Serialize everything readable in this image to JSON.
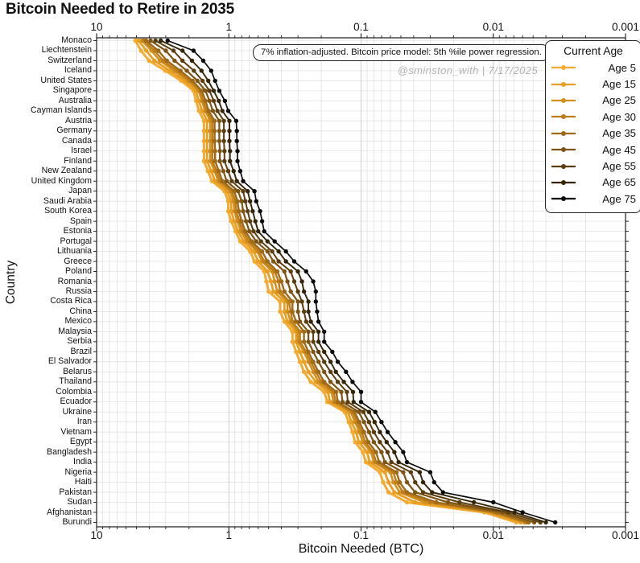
{
  "title": "Bitcoin Needed to Retire in 2035",
  "annotation": "7% inflation-adjusted. Bitcoin price model: 5th %ile power regression.",
  "watermark": "@sminston_with  |  7/17/2025",
  "chart_data": {
    "type": "line",
    "title": "Bitcoin Needed to Retire in 2035",
    "xlabel": "Bitcoin Needed (BTC)",
    "ylabel": "Country",
    "x_scale": "log, reversed (10 on left to 0.001 on right)",
    "xlim": [
      10,
      0.001
    ],
    "x_ticks": [
      "10",
      "1",
      "0.1",
      "0.01",
      "0.001"
    ],
    "x_tick_values": [
      10,
      1,
      0.1,
      0.01,
      0.001
    ],
    "grid": true,
    "legend_title": "Current Age",
    "legend_position": "upper right",
    "marker": "circle",
    "categories": [
      "Monaco",
      "Liechtenstein",
      "Switzerland",
      "Iceland",
      "United States",
      "Singapore",
      "Australia",
      "Cayman Islands",
      "Austria",
      "Germany",
      "Canada",
      "Israel",
      "Finland",
      "New Zealand",
      "United Kingdom",
      "Japan",
      "Saudi Arabia",
      "South Korea",
      "Spain",
      "Estonia",
      "Portugal",
      "Lithuania",
      "Greece",
      "Poland",
      "Romania",
      "Russia",
      "Costa Rica",
      "China",
      "Mexico",
      "Malaysia",
      "Serbia",
      "Brazil",
      "El Salvador",
      "Belarus",
      "Thailand",
      "Colombia",
      "Ecuador",
      "Ukraine",
      "Iran",
      "Vietnam",
      "Egypt",
      "Bangladesh",
      "India",
      "Nigeria",
      "Haiti",
      "Pakistan",
      "Sudan",
      "Afghanistan",
      "Burundi"
    ],
    "series": [
      {
        "name": "Age 5",
        "color": "#F2AC33",
        "values": [
          5.09,
          4.61,
          4.01,
          3.03,
          2.29,
          1.85,
          1.77,
          1.68,
          1.54,
          1.54,
          1.54,
          1.54,
          1.54,
          1.44,
          1.34,
          1.08,
          1.01,
          1.01,
          0.96,
          0.89,
          0.82,
          0.69,
          0.64,
          0.54,
          0.52,
          0.5,
          0.41,
          0.41,
          0.38,
          0.33,
          0.33,
          0.31,
          0.29,
          0.27,
          0.24,
          0.19,
          0.18,
          0.133,
          0.124,
          0.116,
          0.111,
          0.097,
          0.092,
          0.072,
          0.068,
          0.062,
          0.045,
          0.0117,
          0.0067
        ]
      },
      {
        "name": "Age 15",
        "color": "#E89F24",
        "values": [
          4.81,
          4.21,
          3.65,
          2.79,
          2.15,
          1.77,
          1.69,
          1.59,
          1.46,
          1.46,
          1.46,
          1.46,
          1.46,
          1.36,
          1.27,
          1.03,
          0.96,
          0.96,
          0.91,
          0.85,
          0.77,
          0.65,
          0.6,
          0.51,
          0.48,
          0.46,
          0.38,
          0.38,
          0.36,
          0.31,
          0.31,
          0.29,
          0.27,
          0.25,
          0.22,
          0.178,
          0.172,
          0.126,
          0.118,
          0.109,
          0.104,
          0.09,
          0.086,
          0.066,
          0.062,
          0.056,
          0.039,
          0.0109,
          0.0062
        ]
      },
      {
        "name": "Age 25",
        "color": "#D4901E",
        "values": [
          4.55,
          3.84,
          3.32,
          2.58,
          2.03,
          1.69,
          1.6,
          1.51,
          1.38,
          1.38,
          1.38,
          1.38,
          1.38,
          1.28,
          1.2,
          0.98,
          0.92,
          0.91,
          0.86,
          0.81,
          0.73,
          0.61,
          0.56,
          0.47,
          0.45,
          0.43,
          0.36,
          0.36,
          0.34,
          0.3,
          0.3,
          0.27,
          0.25,
          0.23,
          0.21,
          0.167,
          0.162,
          0.12,
          0.111,
          0.103,
          0.097,
          0.084,
          0.08,
          0.06,
          0.057,
          0.051,
          0.033,
          0.0102,
          0.0058
        ]
      },
      {
        "name": "Age 30",
        "color": "#BD7E1B",
        "values": [
          4.4,
          3.64,
          3.14,
          2.46,
          1.96,
          1.65,
          1.56,
          1.47,
          1.33,
          1.33,
          1.33,
          1.33,
          1.33,
          1.24,
          1.16,
          0.95,
          0.89,
          0.88,
          0.83,
          0.78,
          0.7,
          0.59,
          0.54,
          0.45,
          0.42,
          0.41,
          0.35,
          0.34,
          0.33,
          0.29,
          0.29,
          0.26,
          0.24,
          0.22,
          0.2,
          0.161,
          0.156,
          0.116,
          0.107,
          0.099,
          0.093,
          0.081,
          0.077,
          0.057,
          0.054,
          0.048,
          0.03,
          0.0098,
          0.0056
        ]
      },
      {
        "name": "Age 35",
        "color": "#9F6A18",
        "values": [
          4.23,
          3.41,
          2.94,
          2.32,
          1.88,
          1.6,
          1.5,
          1.42,
          1.28,
          1.28,
          1.28,
          1.27,
          1.27,
          1.19,
          1.12,
          0.91,
          0.86,
          0.84,
          0.8,
          0.75,
          0.67,
          0.56,
          0.51,
          0.43,
          0.4,
          0.38,
          0.33,
          0.33,
          0.31,
          0.27,
          0.27,
          0.25,
          0.23,
          0.21,
          0.19,
          0.154,
          0.15,
          0.112,
          0.103,
          0.095,
          0.088,
          0.077,
          0.073,
          0.054,
          0.051,
          0.045,
          0.027,
          0.0094,
          0.0054
        ]
      },
      {
        "name": "Age 45",
        "color": "#7E5414",
        "values": [
          3.91,
          3.0,
          2.57,
          2.08,
          1.73,
          1.5,
          1.4,
          1.32,
          1.18,
          1.18,
          1.18,
          1.17,
          1.17,
          1.1,
          1.04,
          0.85,
          0.8,
          0.78,
          0.74,
          0.7,
          0.62,
          0.51,
          0.46,
          0.38,
          0.36,
          0.34,
          0.3,
          0.3,
          0.29,
          0.25,
          0.25,
          0.23,
          0.21,
          0.19,
          0.17,
          0.141,
          0.138,
          0.104,
          0.095,
          0.087,
          0.08,
          0.07,
          0.066,
          0.048,
          0.045,
          0.039,
          0.022,
          0.0085,
          0.0049
        ]
      },
      {
        "name": "Age 55",
        "color": "#5B3D0F",
        "values": [
          3.59,
          2.62,
          2.24,
          1.84,
          1.58,
          1.4,
          1.3,
          1.22,
          1.09,
          1.09,
          1.09,
          1.08,
          1.08,
          1.01,
          0.95,
          0.78,
          0.75,
          0.72,
          0.69,
          0.65,
          0.57,
          0.47,
          0.42,
          0.34,
          0.32,
          0.3,
          0.28,
          0.27,
          0.26,
          0.23,
          0.23,
          0.21,
          0.19,
          0.17,
          0.15,
          0.128,
          0.126,
          0.096,
          0.087,
          0.08,
          0.072,
          0.063,
          0.059,
          0.042,
          0.039,
          0.034,
          0.018,
          0.0077,
          0.0044
        ]
      },
      {
        "name": "Age 65",
        "color": "#352509",
        "values": [
          3.27,
          2.24,
          1.9,
          1.61,
          1.43,
          1.3,
          1.19,
          1.12,
          0.99,
          0.99,
          0.99,
          0.98,
          0.98,
          0.92,
          0.87,
          0.72,
          0.69,
          0.66,
          0.63,
          0.6,
          0.51,
          0.42,
          0.37,
          0.3,
          0.28,
          0.27,
          0.25,
          0.25,
          0.24,
          0.21,
          0.21,
          0.19,
          0.17,
          0.155,
          0.135,
          0.115,
          0.114,
          0.087,
          0.079,
          0.072,
          0.064,
          0.056,
          0.052,
          0.036,
          0.034,
          0.029,
          0.014,
          0.0069,
          0.004
        ]
      },
      {
        "name": "Age 75",
        "color": "#0c0c0c",
        "values": [
          2.9,
          1.85,
          1.56,
          1.36,
          1.27,
          1.18,
          1.07,
          1.01,
          0.88,
          0.87,
          0.87,
          0.86,
          0.86,
          0.82,
          0.78,
          0.64,
          0.62,
          0.58,
          0.56,
          0.54,
          0.45,
          0.37,
          0.32,
          0.26,
          0.23,
          0.22,
          0.22,
          0.215,
          0.21,
          0.19,
          0.19,
          0.165,
          0.15,
          0.13,
          0.116,
          0.1,
          0.1,
          0.078,
          0.07,
          0.063,
          0.055,
          0.048,
          0.045,
          0.03,
          0.028,
          0.024,
          0.01,
          0.006,
          0.0034
        ]
      }
    ]
  }
}
